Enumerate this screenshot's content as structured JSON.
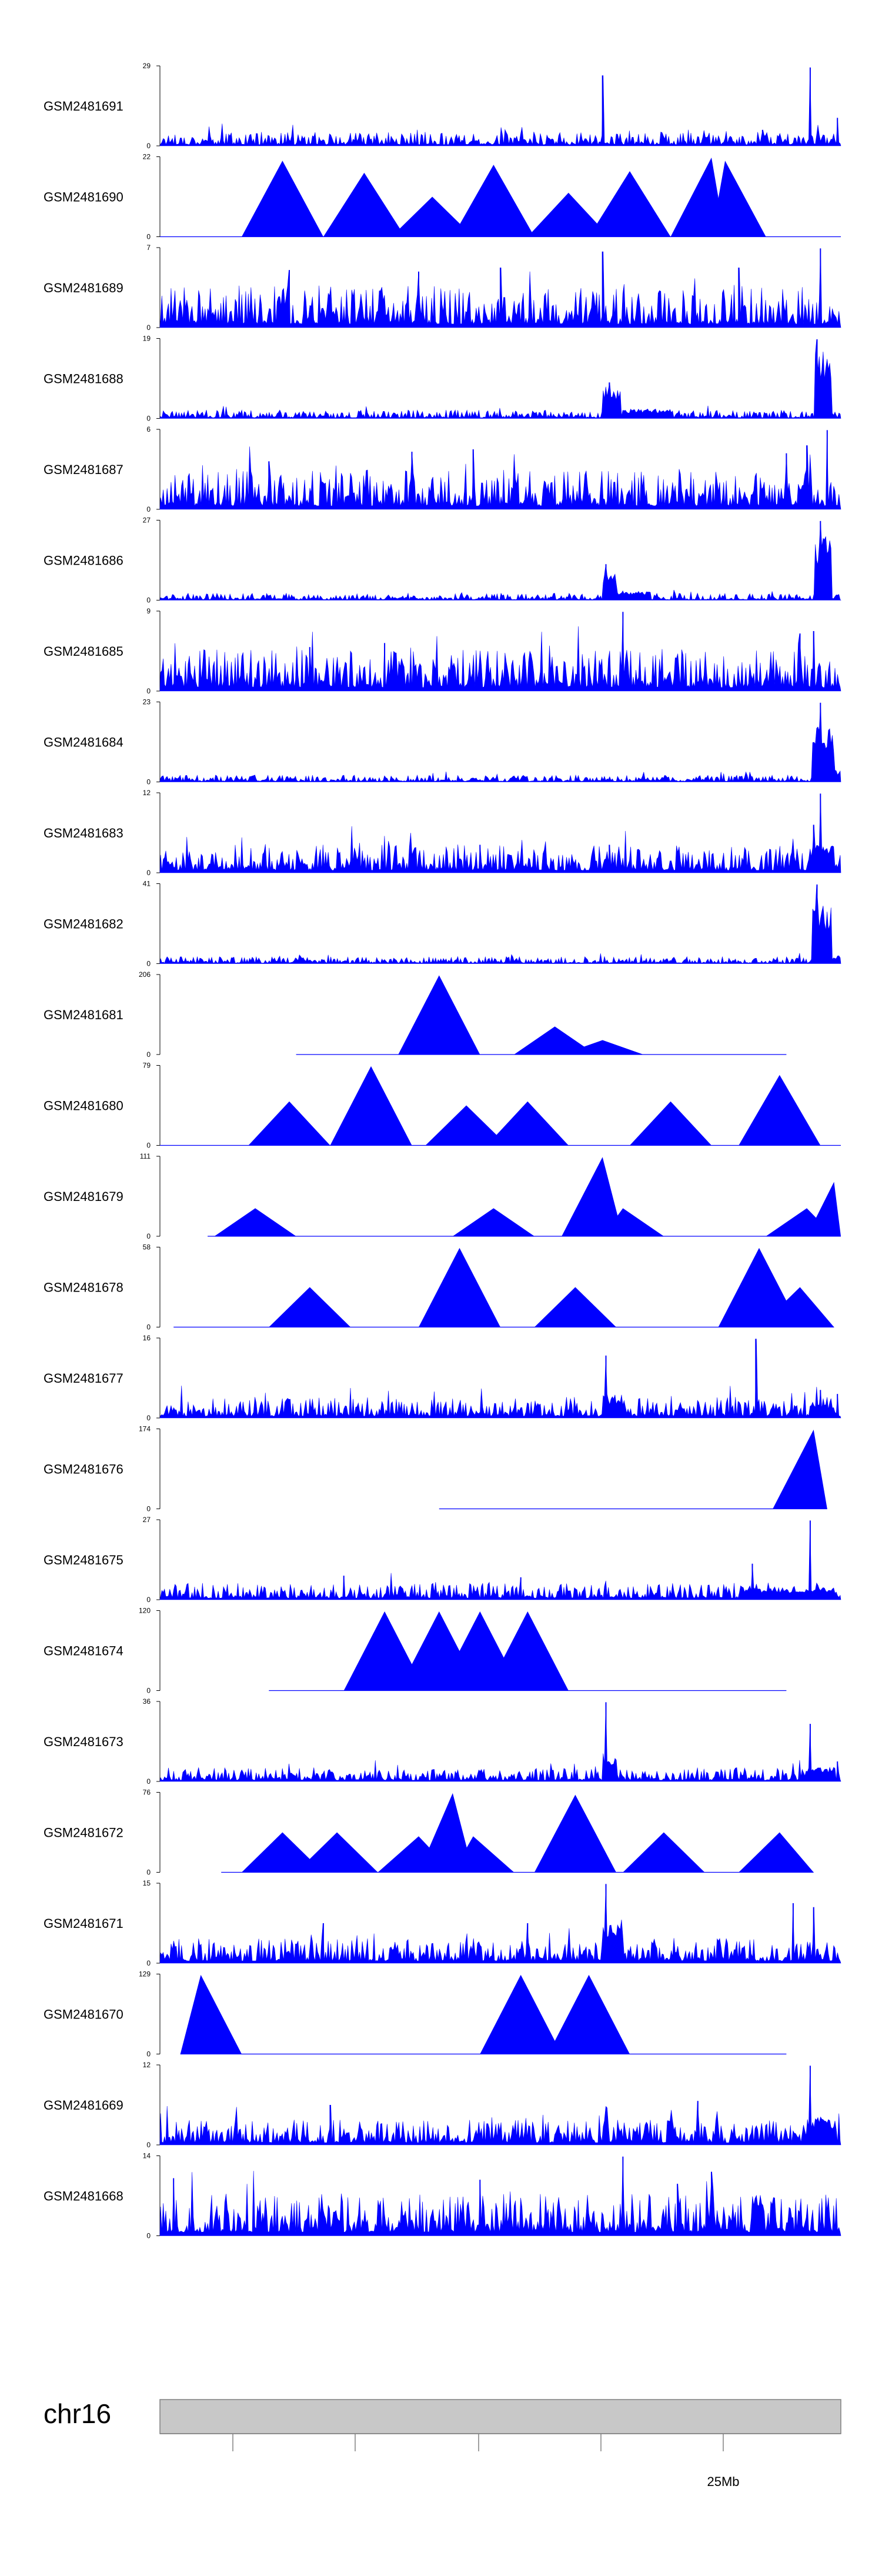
{
  "colors": {
    "signal": "#0000FF",
    "axis": "#000000",
    "ideogram": "#C8C8C8",
    "ideogram_stroke": "#808080"
  },
  "chromosome": {
    "name": "chr16",
    "position_label": "25Mb"
  },
  "chart_data": {
    "type": "area",
    "title": "",
    "xlabel": "",
    "chromosome": "chr16",
    "axis_tick_label": "25Mb",
    "tracks": [
      {
        "name": "GSM2481691",
        "ymax": 29,
        "shape": "dense",
        "density": 1.0,
        "background": 0.1,
        "spikes": [
          [
            0.65,
            0.88
          ],
          [
            0.955,
            0.98
          ],
          [
            0.995,
            0.35
          ],
          [
            0.885,
            0.2
          ]
        ],
        "clusters": []
      },
      {
        "name": "GSM2481690",
        "ymax": 22,
        "shape": "triangles",
        "start": 0.0,
        "end": 1.0,
        "peaks": [
          [
            0.18,
            0.95
          ],
          [
            0.49,
            0.9
          ],
          [
            0.81,
            0.99
          ],
          [
            0.83,
            0.95
          ],
          [
            0.69,
            0.82
          ],
          [
            0.3,
            0.8
          ],
          [
            0.6,
            0.55
          ],
          [
            0.4,
            0.5
          ]
        ]
      },
      {
        "name": "GSM2481689",
        "ymax": 7,
        "shape": "dense",
        "density": 1.0,
        "background": 0.3,
        "spikes": [
          [
            0.65,
            0.95
          ],
          [
            0.97,
            0.99
          ],
          [
            0.5,
            0.75
          ],
          [
            0.38,
            0.7
          ],
          [
            0.85,
            0.75
          ],
          [
            0.19,
            0.72
          ]
        ],
        "clusters": []
      },
      {
        "name": "GSM2481688",
        "ymax": 19,
        "shape": "dense",
        "density": 0.6,
        "background": 0.06,
        "spikes": [
          [
            0.965,
            0.99
          ],
          [
            0.66,
            0.45
          ]
        ],
        "clusters": [
          [
            0.962,
            0.985,
            0.85
          ],
          [
            0.65,
            0.675,
            0.4
          ],
          [
            0.68,
            0.75,
            0.12
          ]
        ]
      },
      {
        "name": "GSM2481687",
        "ymax": 6,
        "shape": "dense",
        "density": 1.0,
        "background": 0.28,
        "spikes": [
          [
            0.98,
            0.99
          ],
          [
            0.95,
            0.8
          ],
          [
            0.46,
            0.75
          ],
          [
            0.37,
            0.72
          ],
          [
            0.16,
            0.6
          ],
          [
            0.92,
            0.7
          ]
        ],
        "clusters": []
      },
      {
        "name": "GSM2481686",
        "ymax": 27,
        "shape": "dense",
        "density": 0.6,
        "background": 0.05,
        "spikes": [
          [
            0.97,
            0.99
          ],
          [
            0.655,
            0.45
          ]
        ],
        "clusters": [
          [
            0.962,
            0.985,
            0.8
          ],
          [
            0.65,
            0.67,
            0.35
          ],
          [
            0.67,
            0.72,
            0.12
          ]
        ]
      },
      {
        "name": "GSM2481685",
        "ymax": 9,
        "shape": "dense",
        "density": 1.0,
        "background": 0.3,
        "spikes": [
          [
            0.68,
            0.99
          ],
          [
            0.33,
            0.6
          ],
          [
            0.94,
            0.72
          ],
          [
            0.96,
            0.75
          ],
          [
            0.22,
            0.55
          ]
        ],
        "clusters": []
      },
      {
        "name": "GSM2481684",
        "ymax": 23,
        "shape": "dense",
        "density": 0.6,
        "background": 0.05,
        "spikes": [
          [
            0.97,
            0.99
          ]
        ],
        "clusters": [
          [
            0.958,
            0.99,
            0.7
          ],
          [
            0.99,
            1.0,
            0.15
          ]
        ]
      },
      {
        "name": "GSM2481683",
        "ymax": 12,
        "shape": "dense",
        "density": 1.0,
        "background": 0.2,
        "spikes": [
          [
            0.97,
            0.99
          ],
          [
            0.96,
            0.6
          ],
          [
            0.66,
            0.35
          ],
          [
            0.47,
            0.35
          ]
        ],
        "clusters": [
          [
            0.955,
            0.99,
            0.35
          ]
        ]
      },
      {
        "name": "GSM2481682",
        "ymax": 41,
        "shape": "dense",
        "density": 0.6,
        "background": 0.05,
        "spikes": [
          [
            0.965,
            0.99
          ]
        ],
        "clusters": [
          [
            0.958,
            0.985,
            0.75
          ],
          [
            0.99,
            1.0,
            0.1
          ]
        ]
      },
      {
        "name": "GSM2481681",
        "ymax": 206,
        "shape": "triangles",
        "start": 0.2,
        "end": 0.92,
        "peaks": [
          [
            0.41,
            0.99
          ],
          [
            0.58,
            0.35
          ],
          [
            0.65,
            0.18
          ]
        ]
      },
      {
        "name": "GSM2481680",
        "ymax": 79,
        "shape": "triangles",
        "start": 0.0,
        "end": 1.0,
        "peaks": [
          [
            0.31,
            0.99
          ],
          [
            0.91,
            0.88
          ],
          [
            0.54,
            0.55
          ],
          [
            0.19,
            0.55
          ],
          [
            0.75,
            0.55
          ],
          [
            0.45,
            0.5
          ]
        ]
      },
      {
        "name": "GSM2481679",
        "ymax": 111,
        "shape": "triangles",
        "start": 0.07,
        "end": 1.0,
        "peaks": [
          [
            0.65,
            0.99
          ],
          [
            0.99,
            0.68
          ],
          [
            0.14,
            0.35
          ],
          [
            0.49,
            0.35
          ],
          [
            0.68,
            0.35
          ],
          [
            0.95,
            0.35
          ]
        ]
      },
      {
        "name": "GSM2481678",
        "ymax": 58,
        "shape": "triangles",
        "start": 0.02,
        "end": 0.99,
        "peaks": [
          [
            0.44,
            0.99
          ],
          [
            0.88,
            0.99
          ],
          [
            0.61,
            0.5
          ],
          [
            0.94,
            0.5
          ],
          [
            0.22,
            0.5
          ]
        ]
      },
      {
        "name": "GSM2481677",
        "ymax": 16,
        "shape": "dense",
        "density": 1.0,
        "background": 0.15,
        "spikes": [
          [
            0.875,
            0.99
          ],
          [
            0.655,
            0.78
          ],
          [
            0.97,
            0.35
          ],
          [
            0.995,
            0.3
          ]
        ],
        "clusters": [
          [
            0.65,
            0.68,
            0.3
          ],
          [
            0.955,
            0.99,
            0.2
          ]
        ]
      },
      {
        "name": "GSM2481676",
        "ymax": 174,
        "shape": "triangles",
        "start": 0.41,
        "end": 0.98,
        "peaks": [
          [
            0.96,
            0.99
          ]
        ]
      },
      {
        "name": "GSM2481675",
        "ymax": 27,
        "shape": "dense",
        "density": 1.0,
        "background": 0.12,
        "spikes": [
          [
            0.955,
            0.99
          ],
          [
            0.87,
            0.45
          ],
          [
            0.27,
            0.3
          ],
          [
            0.53,
            0.28
          ]
        ],
        "clusters": [
          [
            0.85,
            0.99,
            0.15
          ]
        ]
      },
      {
        "name": "GSM2481674",
        "ymax": 120,
        "shape": "triangles",
        "start": 0.16,
        "end": 0.92,
        "peaks": [
          [
            0.33,
            0.99
          ],
          [
            0.41,
            0.99
          ],
          [
            0.47,
            0.99
          ],
          [
            0.54,
            0.99
          ]
        ]
      },
      {
        "name": "GSM2481673",
        "ymax": 36,
        "shape": "dense",
        "density": 1.0,
        "background": 0.1,
        "spikes": [
          [
            0.655,
            0.99
          ],
          [
            0.955,
            0.72
          ],
          [
            0.995,
            0.25
          ]
        ],
        "clusters": [
          [
            0.65,
            0.67,
            0.35
          ],
          [
            0.95,
            0.99,
            0.18
          ]
        ]
      },
      {
        "name": "GSM2481672",
        "ymax": 76,
        "shape": "triangles",
        "start": 0.09,
        "end": 0.96,
        "peaks": [
          [
            0.61,
            0.97
          ],
          [
            0.43,
            0.99
          ],
          [
            0.18,
            0.5
          ],
          [
            0.26,
            0.5
          ],
          [
            0.74,
            0.5
          ],
          [
            0.91,
            0.5
          ],
          [
            0.38,
            0.45
          ],
          [
            0.46,
            0.45
          ]
        ]
      },
      {
        "name": "GSM2481671",
        "ymax": 15,
        "shape": "dense",
        "density": 1.0,
        "background": 0.18,
        "spikes": [
          [
            0.655,
            0.99
          ],
          [
            0.54,
            0.5
          ],
          [
            0.93,
            0.75
          ],
          [
            0.96,
            0.7
          ],
          [
            0.24,
            0.5
          ]
        ],
        "clusters": [
          [
            0.65,
            0.68,
            0.55
          ]
        ]
      },
      {
        "name": "GSM2481670",
        "ymax": 129,
        "shape": "triangles",
        "start": 0.03,
        "end": 0.92,
        "peaks": [
          [
            0.06,
            0.99
          ],
          [
            0.53,
            0.99
          ],
          [
            0.63,
            0.99
          ]
        ]
      },
      {
        "name": "GSM2481669",
        "ymax": 12,
        "shape": "dense",
        "density": 1.0,
        "background": 0.18,
        "spikes": [
          [
            0.955,
            0.99
          ],
          [
            0.25,
            0.5
          ],
          [
            0.79,
            0.55
          ]
        ],
        "clusters": [
          [
            0.95,
            0.99,
            0.35
          ]
        ]
      },
      {
        "name": "GSM2481668",
        "ymax": 14,
        "shape": "dense",
        "density": 1.0,
        "background": 0.3,
        "spikes": [
          [
            0.68,
            0.99
          ],
          [
            0.81,
            0.8
          ],
          [
            0.02,
            0.72
          ],
          [
            0.47,
            0.7
          ],
          [
            0.76,
            0.65
          ]
        ],
        "clusters": []
      }
    ]
  }
}
